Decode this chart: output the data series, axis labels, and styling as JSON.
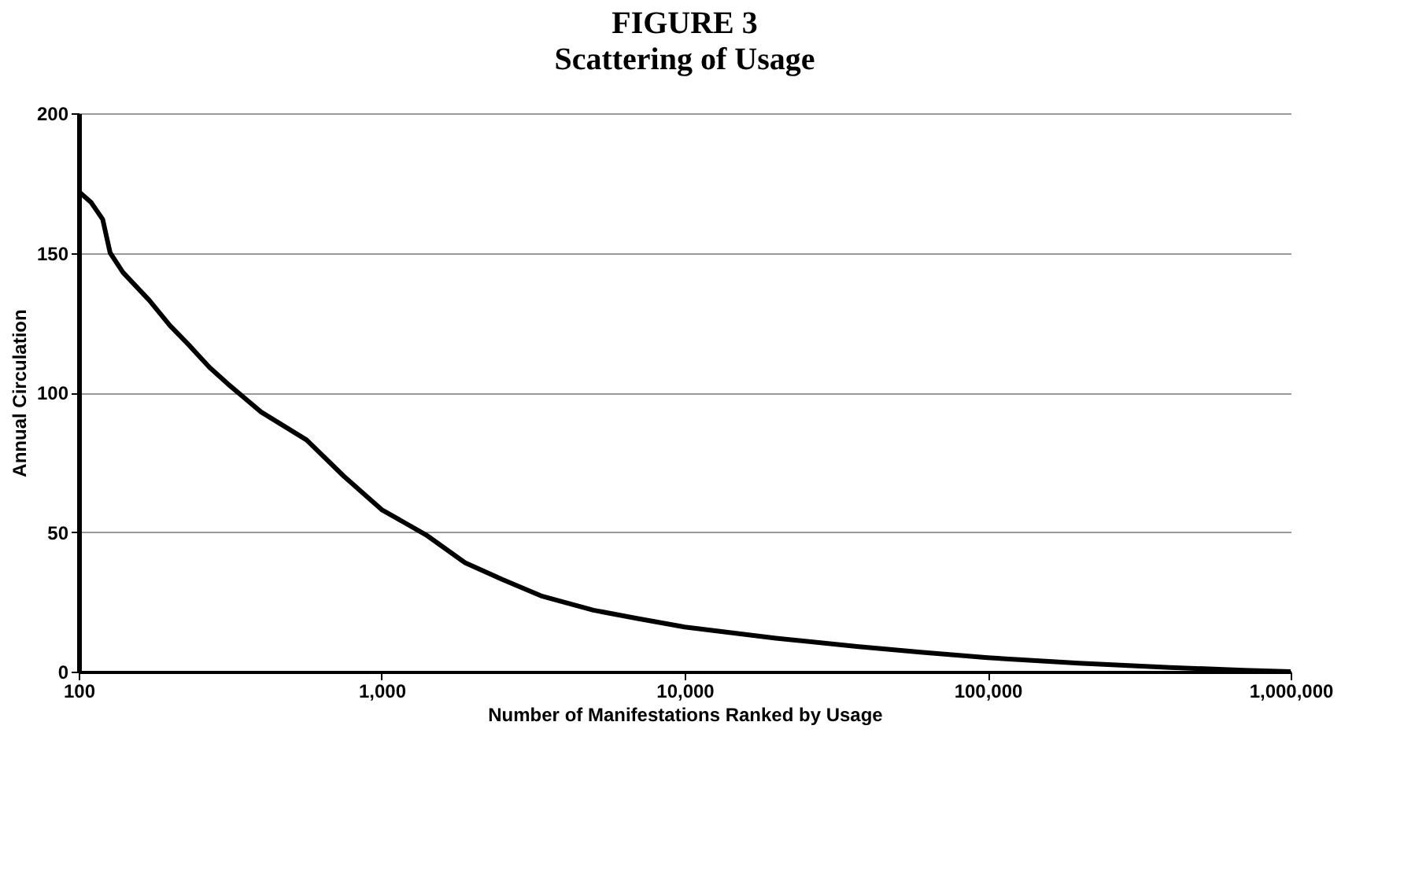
{
  "chart_data": {
    "type": "line",
    "title": "FIGURE 3",
    "subtitle": "Scattering of Usage",
    "xlabel": "Number of Manifestations Ranked by Usage",
    "ylabel": "Annual Circulation",
    "log": "x",
    "grid": "y",
    "legend": false,
    "marker": "none",
    "line_style": "solid",
    "xlim": [
      100,
      1000000
    ],
    "xticks": [
      {
        "value": 100,
        "label": "100"
      },
      {
        "value": 1000,
        "label": "1,000"
      },
      {
        "value": 10000,
        "label": "10,000"
      },
      {
        "value": 100000,
        "label": "100,000"
      },
      {
        "value": 1000000,
        "label": "1,000,000"
      }
    ],
    "ylim": [
      0,
      200
    ],
    "yticks": [
      0,
      50,
      100,
      150,
      200
    ],
    "x": [
      100,
      110,
      120,
      127,
      140,
      171,
      200,
      231,
      270,
      311,
      400,
      565,
      750,
      1000,
      1400,
      1884,
      2500,
      3390,
      5000,
      7000,
      10000,
      20000,
      37000,
      60000,
      100000,
      200000,
      400000,
      700000,
      1000000
    ],
    "series": [
      {
        "color": "#000000",
        "values": [
          172,
          168,
          162,
          150,
          143,
          133,
          124,
          117,
          109,
          103,
          93,
          83,
          70,
          58,
          49,
          39,
          33,
          27,
          22,
          19,
          16,
          12,
          9,
          7,
          5,
          3,
          1.5,
          0.5,
          0
        ]
      }
    ]
  }
}
